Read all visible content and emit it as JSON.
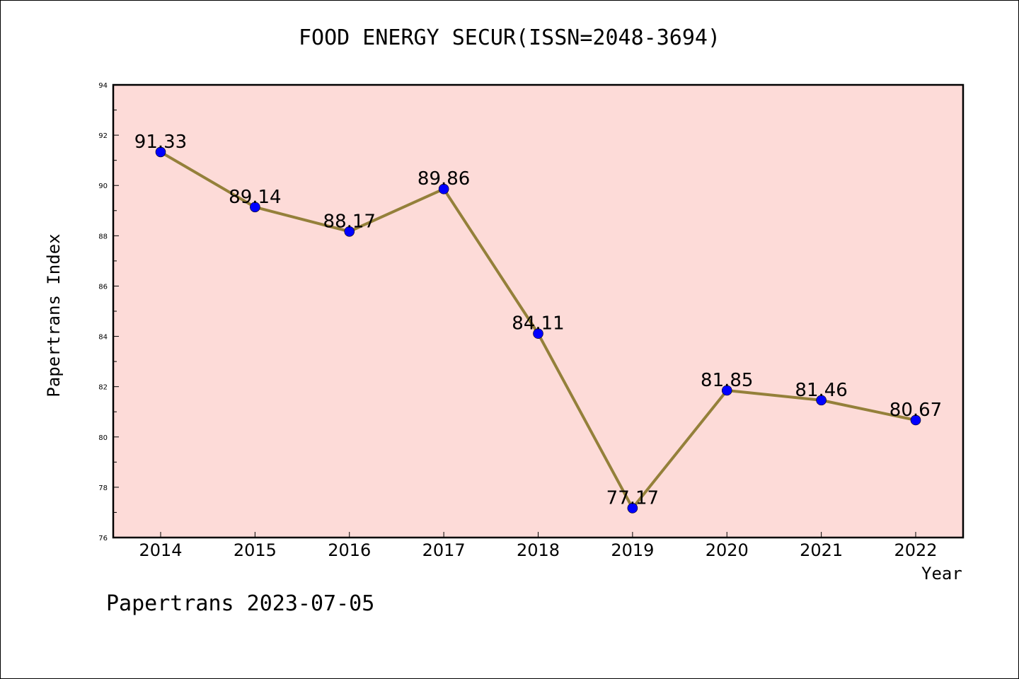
{
  "chart_data": {
    "type": "line",
    "title": "FOOD ENERGY SECUR(ISSN=2048-3694)",
    "xlabel": "Year",
    "ylabel": "Papertrans Index",
    "categories": [
      "2014",
      "2015",
      "2016",
      "2017",
      "2018",
      "2019",
      "2020",
      "2021",
      "2022"
    ],
    "series": [
      {
        "values": [
          91.33,
          89.14,
          88.17,
          89.86,
          84.11,
          77.17,
          81.85,
          81.46,
          80.67
        ],
        "data_labels": [
          "91.33",
          "89.14",
          "88.17",
          "89.86",
          "84.11",
          "77.17",
          "81.85",
          "81.46",
          "80.67"
        ]
      }
    ],
    "ylim": [
      76,
      94
    ],
    "y_ticks": [
      "76",
      "78",
      "80",
      "82",
      "84",
      "86",
      "88",
      "90",
      "92",
      "94"
    ],
    "grid": false,
    "colors": {
      "plot_background": "#fddbd8",
      "line": "#94803a",
      "marker": "#0000ff"
    }
  },
  "footer": "Papertrans 2023-07-05"
}
